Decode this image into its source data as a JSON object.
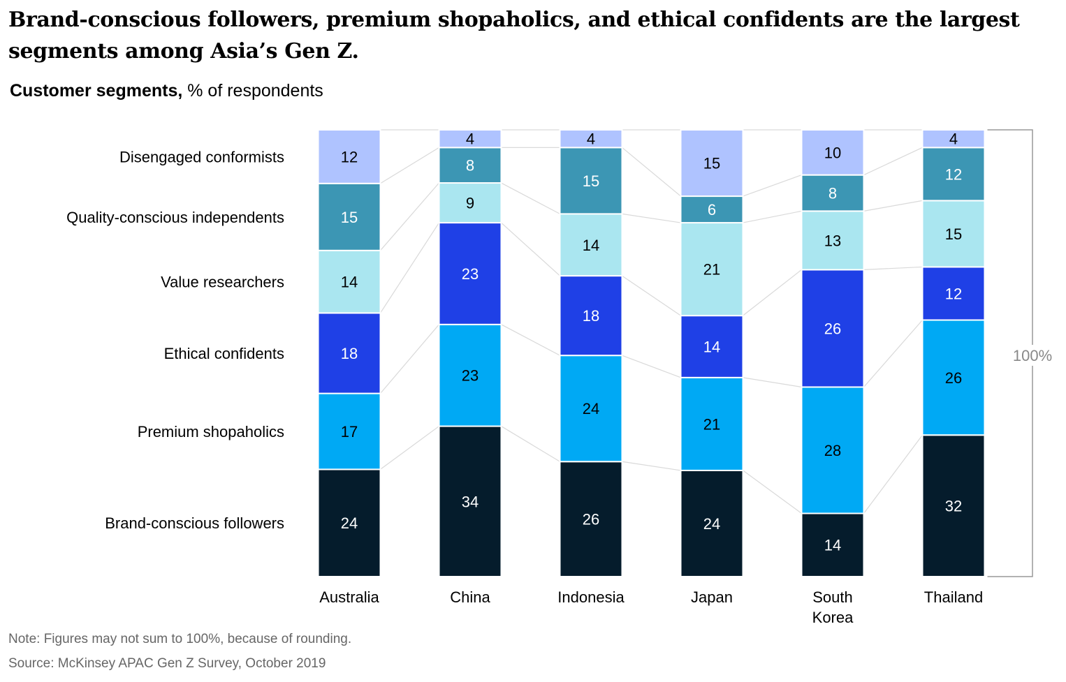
{
  "title": "Brand-conscious followers, premium shopaholics, and ethical confidents are the largest segments among Asia’s Gen Z.",
  "subtitle_bold": "Customer segments,",
  "subtitle_rest": " % of respondents",
  "note": "Note: Figures may not sum to 100%, because of rounding.",
  "source": "Source: McKinsey APAC Gen Z Survey, October 2019",
  "colors": {
    "brand_conscious": "#051c2c",
    "premium": "#00a9f4",
    "ethical": "#1f40e6",
    "value": "#aae6f0",
    "quality": "#3c96b4",
    "disengaged": "#afc3ff",
    "connector": "#d9d9d9",
    "bracket": "#999999"
  },
  "chart_data": {
    "type": "bar",
    "stacked": true,
    "title": "Brand-conscious followers, premium shopaholics, and ethical confidents are the largest segments among Asia’s Gen Z.",
    "ylabel": "Customer segments, % of respondents",
    "categories": [
      "Australia",
      "China",
      "Indonesia",
      "Japan",
      "South Korea",
      "Thailand"
    ],
    "category_lines": [
      [
        "Australia"
      ],
      [
        "China"
      ],
      [
        "Indonesia"
      ],
      [
        "Japan"
      ],
      [
        "South",
        "Korea"
      ],
      [
        "Thailand"
      ]
    ],
    "series": [
      {
        "name": "Brand-conscious followers",
        "key": "brand_conscious",
        "label_color": "#ffffff",
        "values": [
          24,
          34,
          26,
          24,
          14,
          32
        ]
      },
      {
        "name": "Premium shopaholics",
        "key": "premium",
        "label_color": "#000000",
        "values": [
          17,
          23,
          24,
          21,
          28,
          26
        ]
      },
      {
        "name": "Ethical confidents",
        "key": "ethical",
        "label_color": "#ffffff",
        "values": [
          18,
          23,
          18,
          14,
          26,
          12
        ]
      },
      {
        "name": "Value researchers",
        "key": "value",
        "label_color": "#000000",
        "values": [
          14,
          9,
          14,
          21,
          13,
          15
        ]
      },
      {
        "name": "Quality-conscious independents",
        "key": "quality",
        "label_color": "#ffffff",
        "values": [
          15,
          8,
          15,
          6,
          8,
          12
        ]
      },
      {
        "name": "Disengaged conformists",
        "key": "disengaged",
        "label_color": "#000000",
        "values": [
          12,
          4,
          4,
          15,
          10,
          4
        ]
      }
    ],
    "total_label": "100%",
    "ylim": [
      0,
      100
    ]
  }
}
